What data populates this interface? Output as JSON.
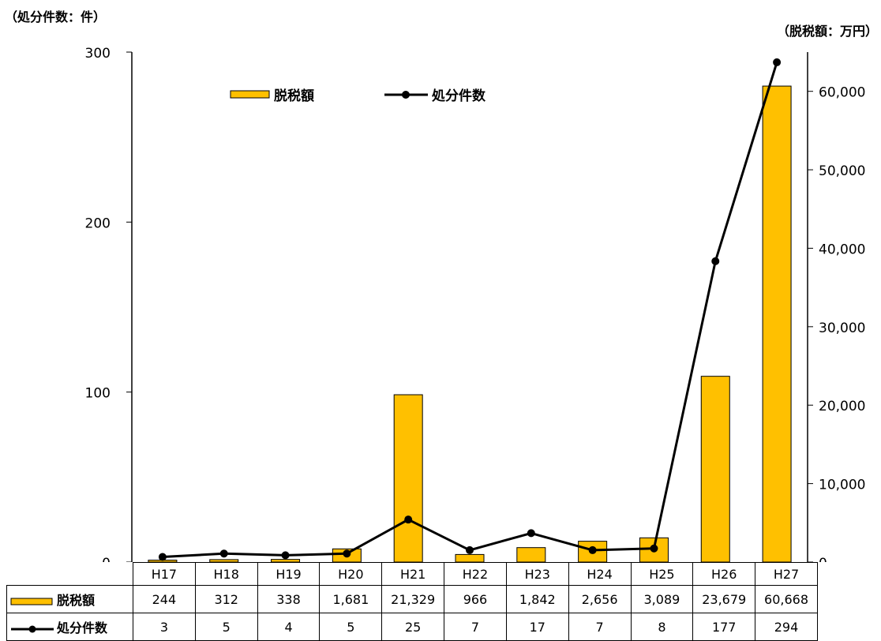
{
  "units": {
    "left": "（処分件数：件）",
    "right": "（脱税額：万円）"
  },
  "colors": {
    "bar_fill": "#FFC000",
    "bar_stroke": "#000000",
    "line": "#000000"
  },
  "chart_data": {
    "type": "bar+line",
    "categories": [
      "H17",
      "H18",
      "H19",
      "H20",
      "H21",
      "H22",
      "H23",
      "H24",
      "H25",
      "H26",
      "H27"
    ],
    "series": [
      {
        "name": "脱税額",
        "type": "bar",
        "axis": "right",
        "values": [
          244,
          312,
          338,
          1681,
          21329,
          966,
          1842,
          2656,
          3089,
          23679,
          60668
        ],
        "labels": [
          "244",
          "312",
          "338",
          "1,681",
          "21,329",
          "966",
          "1,842",
          "2,656",
          "3,089",
          "23,679",
          "60,668"
        ]
      },
      {
        "name": "処分件数",
        "type": "line",
        "axis": "left",
        "values": [
          3,
          5,
          4,
          5,
          25,
          7,
          17,
          7,
          8,
          177,
          294
        ],
        "labels": [
          "3",
          "5",
          "4",
          "5",
          "25",
          "7",
          "17",
          "7",
          "8",
          "177",
          "294"
        ]
      }
    ],
    "y_left": {
      "ylim": [
        0,
        300
      ],
      "ticks": [
        0,
        100,
        200,
        300
      ],
      "tick_labels": [
        "0",
        "100",
        "200",
        "300"
      ]
    },
    "y_right": {
      "ylim": [
        0,
        65000
      ],
      "ticks": [
        0,
        10000,
        20000,
        30000,
        40000,
        50000,
        60000
      ],
      "tick_labels": [
        "0",
        "10,000",
        "20,000",
        "30,000",
        "40,000",
        "50,000",
        "60,000"
      ]
    },
    "legend": {
      "items": [
        "脱税額",
        "処分件数"
      ],
      "placement": "top-left"
    },
    "grid": false
  }
}
